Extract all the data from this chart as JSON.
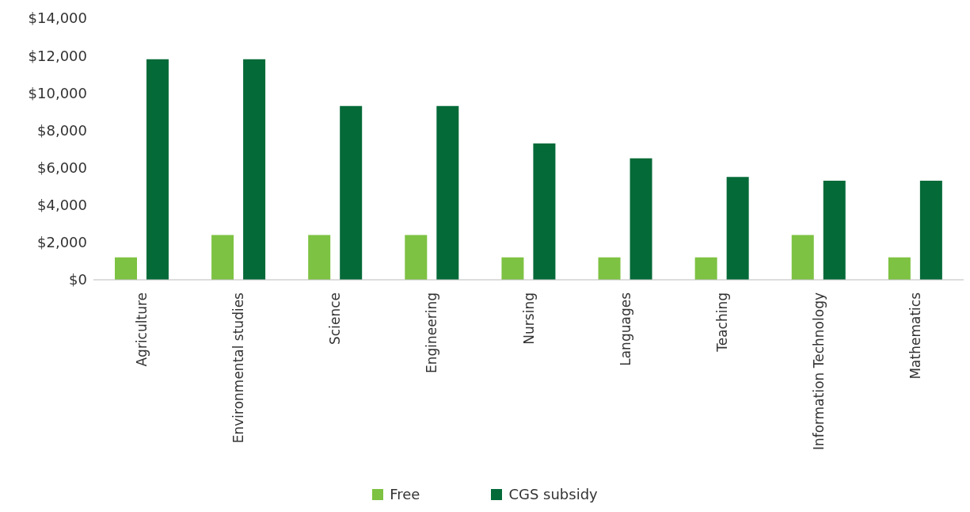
{
  "chart_data": {
    "type": "bar",
    "categories": [
      "Agriculture",
      "Environmental studies",
      "Science",
      "Engineering",
      "Nursing",
      "Languages",
      "Teaching",
      "Information Technology",
      "Mathematics"
    ],
    "series": [
      {
        "name": "Free",
        "color": "#7dc242",
        "values": [
          1200,
          2400,
          2400,
          2400,
          1200,
          1200,
          1200,
          2400,
          1200
        ]
      },
      {
        "name": "CGS subsidy",
        "color": "#046a38",
        "values": [
          11800,
          11800,
          9300,
          9300,
          7300,
          6500,
          5500,
          5300,
          5300
        ]
      }
    ],
    "ylim": [
      0,
      14000
    ],
    "yticks": [
      {
        "value": 0,
        "label": "$0"
      },
      {
        "value": 2000,
        "label": "$2,000"
      },
      {
        "value": 4000,
        "label": "$4,000"
      },
      {
        "value": 6000,
        "label": "$6,000"
      },
      {
        "value": 8000,
        "label": "$8,000"
      },
      {
        "value": 10000,
        "label": "$10,000"
      },
      {
        "value": 12000,
        "label": "$12,000"
      },
      {
        "value": 14000,
        "label": "$14,000"
      }
    ],
    "grid": false,
    "legend": "bottom"
  }
}
